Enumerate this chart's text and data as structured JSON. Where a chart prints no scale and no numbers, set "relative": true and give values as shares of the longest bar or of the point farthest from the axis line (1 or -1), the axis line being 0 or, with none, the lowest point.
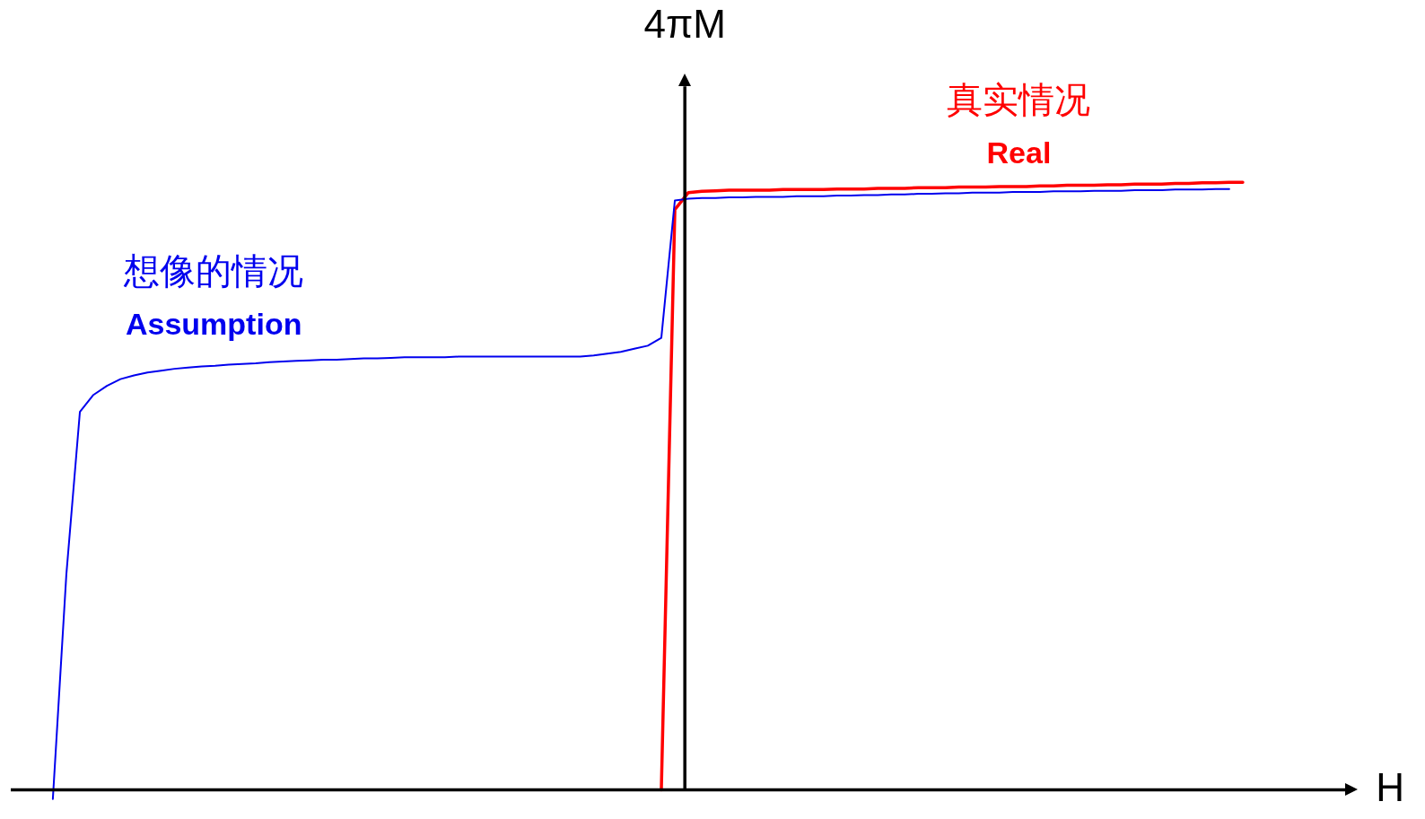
{
  "chart_data": {
    "type": "line",
    "relative": true,
    "xlabel": "H",
    "ylabel": "4πM",
    "legend": false,
    "grid": false,
    "marker": "none",
    "line_style": "solid",
    "tick_labels": false,
    "categories": [
      null,
      null,
      null,
      null,
      null,
      null,
      null,
      null,
      null,
      null,
      null,
      null,
      null,
      null,
      null,
      null,
      null,
      null,
      null,
      null,
      null,
      null,
      null,
      null,
      null,
      null,
      null,
      null,
      null,
      null,
      null,
      null,
      null,
      null,
      null,
      null,
      null,
      null,
      null,
      null,
      null,
      null,
      null,
      null,
      null,
      null,
      null,
      null,
      null,
      null,
      null,
      null,
      null,
      null,
      null,
      null,
      null,
      null,
      null,
      null,
      null,
      null,
      null,
      null,
      null,
      null,
      null,
      null,
      null,
      null,
      null,
      null,
      null,
      null,
      null,
      null,
      null,
      null,
      null,
      null,
      null,
      null,
      null,
      null,
      null,
      null,
      null,
      null,
      null
    ],
    "series": [
      {
        "name": "想像的情况\nAssumption",
        "color": "#0000ee",
        "values": [
          -0.015,
          0.355,
          0.622,
          0.65,
          0.665,
          0.676,
          0.682,
          0.687,
          0.69,
          0.693,
          0.695,
          0.697,
          0.698,
          0.7,
          0.701,
          0.702,
          0.704,
          0.705,
          0.706,
          0.707,
          0.708,
          0.708,
          0.709,
          0.71,
          0.71,
          0.711,
          0.712,
          0.712,
          0.712,
          0.712,
          0.713,
          0.713,
          0.713,
          0.713,
          0.713,
          0.713,
          0.713,
          0.713,
          0.713,
          0.713,
          0.715,
          0.718,
          0.721,
          0.726,
          0.731,
          0.744,
          0.97,
          0.973,
          0.974,
          0.974,
          0.975,
          0.975,
          0.976,
          0.976,
          0.976,
          0.977,
          0.977,
          0.977,
          0.978,
          0.978,
          0.979,
          0.979,
          0.98,
          0.98,
          0.981,
          0.981,
          0.982,
          0.982,
          0.983,
          0.983,
          0.983,
          0.984,
          0.984,
          0.984,
          0.985,
          0.985,
          0.985,
          0.986,
          0.986,
          0.986,
          0.987,
          0.987,
          0.987,
          0.988,
          0.988,
          0.988,
          0.989,
          0.989,
          null
        ]
      },
      {
        "name": "真实情况\nReal",
        "color": "#ff0000",
        "values": [
          null,
          null,
          null,
          null,
          null,
          null,
          null,
          null,
          null,
          null,
          null,
          null,
          null,
          null,
          null,
          null,
          null,
          null,
          null,
          null,
          null,
          null,
          null,
          null,
          null,
          null,
          null,
          null,
          null,
          null,
          null,
          null,
          null,
          null,
          null,
          null,
          null,
          null,
          null,
          null,
          null,
          null,
          null,
          null,
          null,
          0.0,
          0.955,
          0.983,
          0.985,
          0.986,
          0.987,
          0.987,
          0.987,
          0.987,
          0.988,
          0.988,
          0.988,
          0.988,
          0.989,
          0.989,
          0.989,
          0.99,
          0.99,
          0.99,
          0.991,
          0.991,
          0.991,
          0.992,
          0.992,
          0.992,
          0.993,
          0.993,
          0.993,
          0.994,
          0.994,
          0.995,
          0.995,
          0.995,
          0.996,
          0.996,
          0.997,
          0.997,
          0.997,
          0.998,
          0.998,
          0.999,
          0.999,
          1.0,
          1.0
        ]
      }
    ]
  }
}
